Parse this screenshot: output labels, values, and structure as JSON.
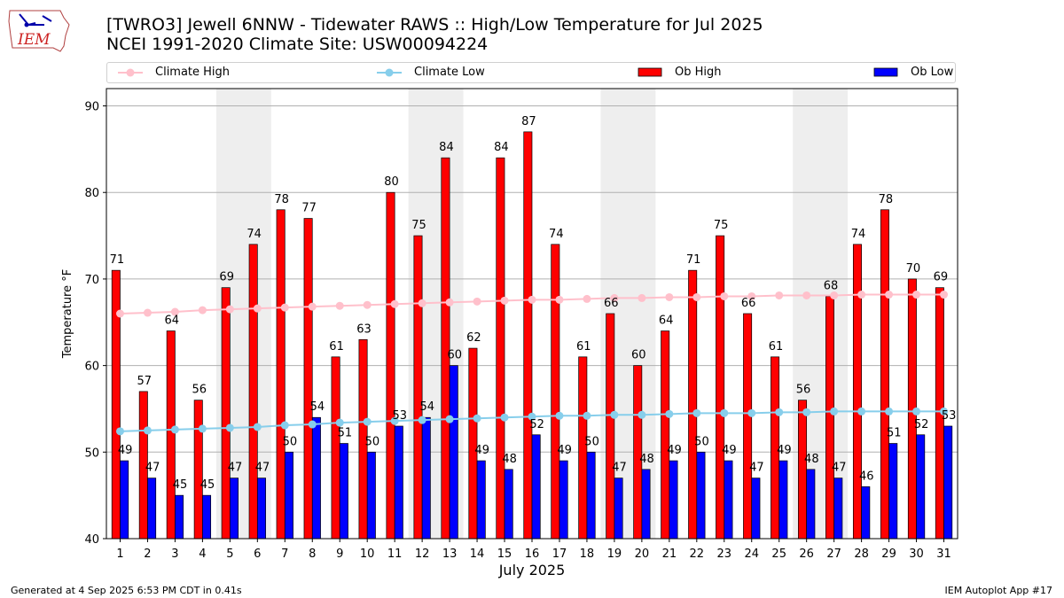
{
  "header": {
    "title_line1": "[TWRO3] Jewell 6NNW - Tidewater RAWS :: High/Low Temperature for Jul 2025",
    "title_line2": "NCEI 1991-2020 Climate Site: USW00094224",
    "logo_text": "IEM"
  },
  "footer": {
    "generated": "Generated at 4 Sep 2025 6:53 PM CDT in 0.41s",
    "app": "IEM Autoplot App #17"
  },
  "colors": {
    "ob_high": "#ff0000",
    "ob_low": "#0000ff",
    "climate_high": "#ffc0cb",
    "climate_low": "#87ceeb",
    "weekend_shade": "#eeeeee"
  },
  "chart_data": {
    "type": "bar",
    "xlabel": "July 2025",
    "ylabel": "Temperature °F",
    "ylim": [
      40,
      92
    ],
    "yticks": [
      40,
      50,
      60,
      70,
      80,
      90
    ],
    "grid": true,
    "legend_position": "top",
    "categories": [
      "1",
      "2",
      "3",
      "4",
      "5",
      "6",
      "7",
      "8",
      "9",
      "10",
      "11",
      "12",
      "13",
      "14",
      "15",
      "16",
      "17",
      "18",
      "19",
      "20",
      "21",
      "22",
      "23",
      "24",
      "25",
      "26",
      "27",
      "28",
      "29",
      "30",
      "31"
    ],
    "shaded_days": [
      [
        5,
        6
      ],
      [
        12,
        13
      ],
      [
        19,
        20
      ],
      [
        26,
        27
      ]
    ],
    "series": [
      {
        "name": "Climate High",
        "kind": "line",
        "values": [
          66.0,
          66.1,
          66.2,
          66.4,
          66.5,
          66.6,
          66.7,
          66.8,
          66.9,
          67.0,
          67.1,
          67.2,
          67.3,
          67.4,
          67.5,
          67.6,
          67.6,
          67.7,
          67.8,
          67.8,
          67.9,
          67.9,
          68.0,
          68.0,
          68.1,
          68.1,
          68.1,
          68.2,
          68.2,
          68.2,
          68.2
        ]
      },
      {
        "name": "Climate Low",
        "kind": "line",
        "values": [
          52.4,
          52.5,
          52.6,
          52.7,
          52.8,
          52.9,
          53.1,
          53.2,
          53.4,
          53.5,
          53.6,
          53.7,
          53.8,
          53.9,
          54.0,
          54.1,
          54.2,
          54.2,
          54.3,
          54.3,
          54.4,
          54.5,
          54.5,
          54.5,
          54.6,
          54.6,
          54.7,
          54.7,
          54.7,
          54.7,
          54.7
        ]
      },
      {
        "name": "Ob High",
        "kind": "bar",
        "values": [
          71,
          57,
          64,
          56,
          69,
          74,
          78,
          77,
          61,
          63,
          80,
          75,
          84,
          62,
          84,
          87,
          74,
          61,
          66,
          60,
          64,
          71,
          75,
          66,
          61,
          56,
          68,
          74,
          78,
          70,
          69
        ]
      },
      {
        "name": "Ob Low",
        "kind": "bar",
        "values": [
          49,
          47,
          45,
          45,
          47,
          47,
          50,
          54,
          51,
          50,
          53,
          54,
          60,
          49,
          48,
          52,
          49,
          50,
          47,
          48,
          49,
          50,
          49,
          47,
          49,
          48,
          47,
          46,
          51,
          52,
          53
        ]
      }
    ]
  }
}
